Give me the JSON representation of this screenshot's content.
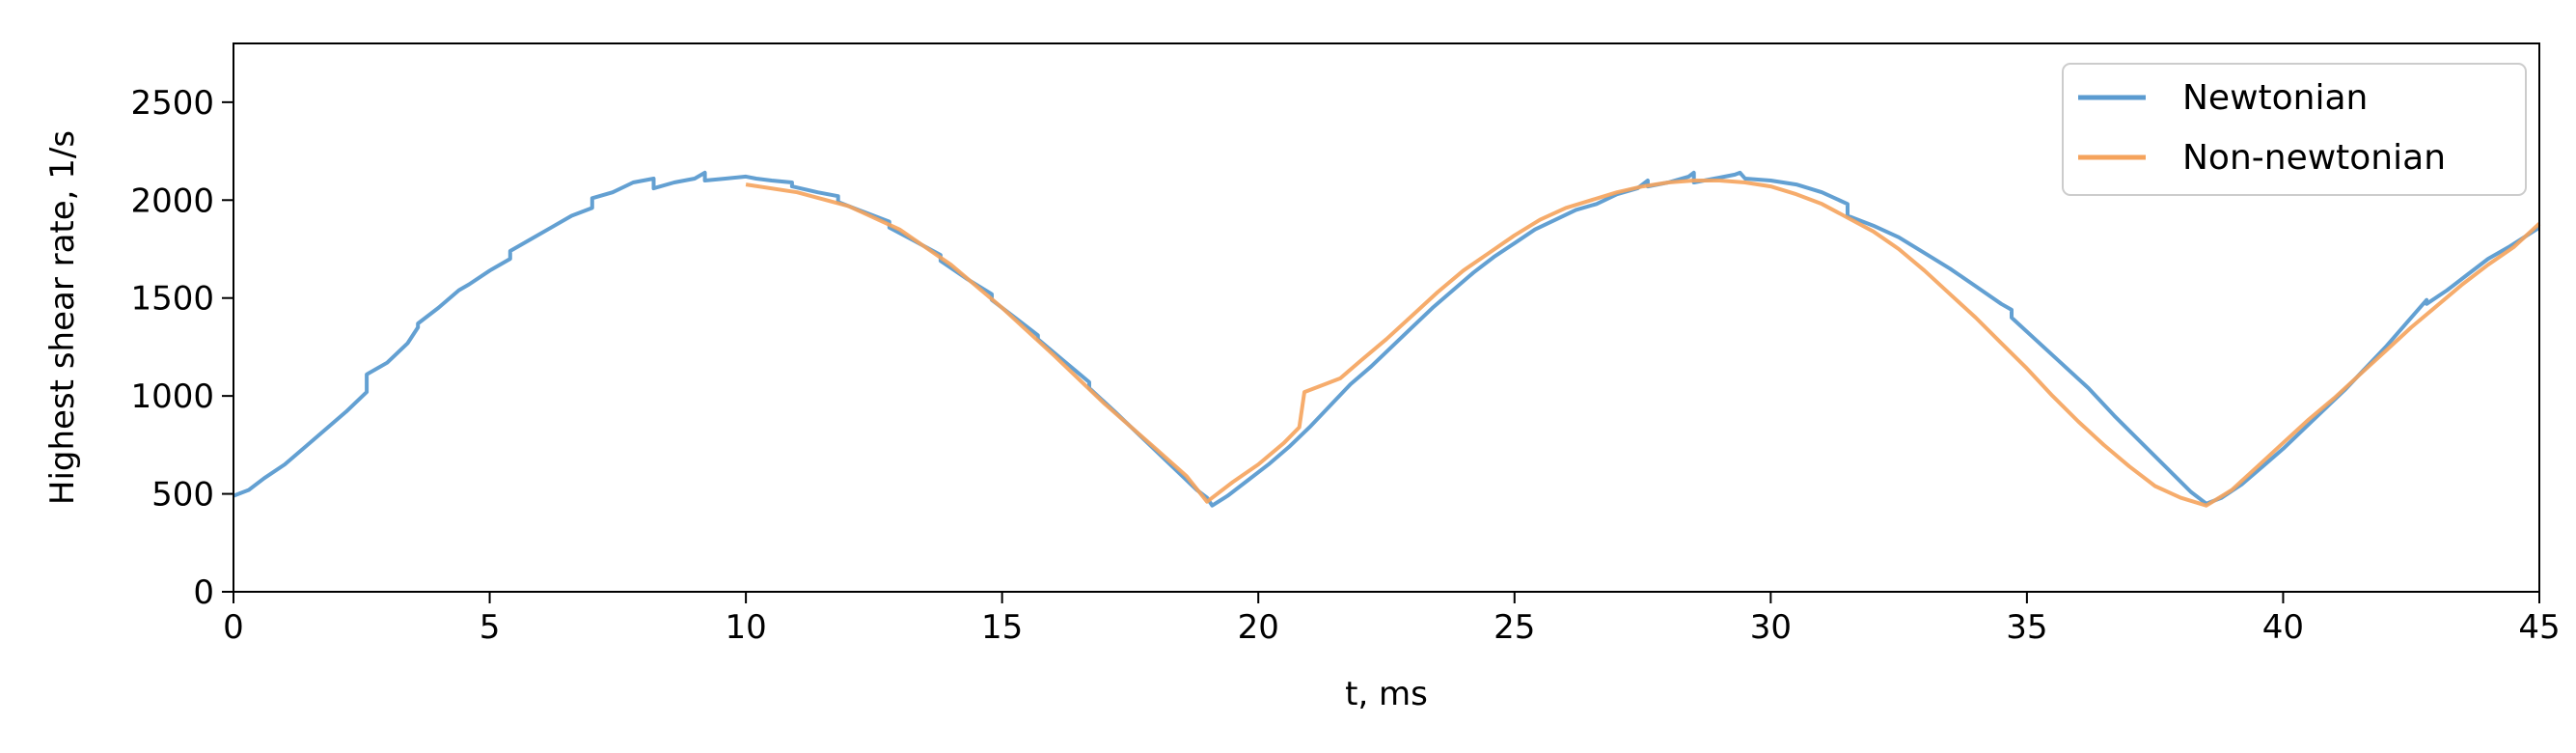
{
  "chart_data": {
    "type": "line",
    "title": "",
    "xlabel": "t, ms",
    "ylabel": "Highest shear rate, 1/s",
    "xlim": [
      0,
      45
    ],
    "ylim": [
      0,
      2800
    ],
    "xticks": [
      0,
      5,
      10,
      15,
      20,
      25,
      30,
      35,
      40,
      45
    ],
    "yticks": [
      0,
      500,
      1000,
      1500,
      2000,
      2500
    ],
    "grid": false,
    "legend_position": "top-right",
    "series": [
      {
        "name": "Newtonian",
        "color": "#5b9bd0",
        "points": [
          [
            0,
            490
          ],
          [
            0.3,
            520
          ],
          [
            0.6,
            580
          ],
          [
            1.0,
            650
          ],
          [
            1.4,
            740
          ],
          [
            1.8,
            830
          ],
          [
            2.2,
            920
          ],
          [
            2.6,
            1020
          ],
          [
            2.6,
            1110
          ],
          [
            3.0,
            1170
          ],
          [
            3.4,
            1270
          ],
          [
            3.6,
            1350
          ],
          [
            3.6,
            1370
          ],
          [
            4.0,
            1450
          ],
          [
            4.4,
            1540
          ],
          [
            4.6,
            1570
          ],
          [
            5.0,
            1640
          ],
          [
            5.4,
            1700
          ],
          [
            5.4,
            1740
          ],
          [
            5.8,
            1800
          ],
          [
            6.2,
            1860
          ],
          [
            6.6,
            1920
          ],
          [
            7.0,
            1960
          ],
          [
            7.0,
            2010
          ],
          [
            7.4,
            2040
          ],
          [
            7.8,
            2090
          ],
          [
            8.2,
            2110
          ],
          [
            8.2,
            2060
          ],
          [
            8.6,
            2090
          ],
          [
            9.0,
            2110
          ],
          [
            9.2,
            2140
          ],
          [
            9.2,
            2100
          ],
          [
            9.6,
            2110
          ],
          [
            10.0,
            2120
          ],
          [
            10.2,
            2110
          ],
          [
            10.5,
            2100
          ],
          [
            10.9,
            2090
          ],
          [
            10.9,
            2070
          ],
          [
            11.4,
            2040
          ],
          [
            11.8,
            2020
          ],
          [
            11.8,
            1990
          ],
          [
            12.3,
            1940
          ],
          [
            12.8,
            1890
          ],
          [
            12.8,
            1860
          ],
          [
            13.3,
            1790
          ],
          [
            13.8,
            1720
          ],
          [
            13.8,
            1690
          ],
          [
            14.3,
            1600
          ],
          [
            14.8,
            1520
          ],
          [
            14.8,
            1490
          ],
          [
            15.3,
            1390
          ],
          [
            15.7,
            1310
          ],
          [
            15.7,
            1290
          ],
          [
            16.2,
            1180
          ],
          [
            16.7,
            1070
          ],
          [
            16.7,
            1040
          ],
          [
            17.2,
            920
          ],
          [
            17.6,
            820
          ],
          [
            18.0,
            720
          ],
          [
            18.4,
            620
          ],
          [
            18.8,
            520
          ],
          [
            19.0,
            480
          ],
          [
            19.1,
            440
          ],
          [
            19.4,
            490
          ],
          [
            19.8,
            570
          ],
          [
            20.2,
            650
          ],
          [
            20.6,
            740
          ],
          [
            21.0,
            840
          ],
          [
            21.4,
            950
          ],
          [
            21.8,
            1060
          ],
          [
            22.2,
            1150
          ],
          [
            22.6,
            1250
          ],
          [
            23.0,
            1350
          ],
          [
            23.4,
            1450
          ],
          [
            23.8,
            1540
          ],
          [
            24.2,
            1630
          ],
          [
            24.6,
            1710
          ],
          [
            25.0,
            1780
          ],
          [
            25.4,
            1850
          ],
          [
            25.8,
            1900
          ],
          [
            26.2,
            1950
          ],
          [
            26.6,
            1980
          ],
          [
            27.0,
            2030
          ],
          [
            27.4,
            2060
          ],
          [
            27.6,
            2100
          ],
          [
            27.6,
            2070
          ],
          [
            28.0,
            2090
          ],
          [
            28.4,
            2120
          ],
          [
            28.5,
            2140
          ],
          [
            28.5,
            2090
          ],
          [
            28.9,
            2110
          ],
          [
            29.3,
            2130
          ],
          [
            29.4,
            2140
          ],
          [
            29.5,
            2110
          ],
          [
            30.0,
            2100
          ],
          [
            30.5,
            2080
          ],
          [
            31.0,
            2040
          ],
          [
            31.5,
            1980
          ],
          [
            31.5,
            1920
          ],
          [
            32.0,
            1870
          ],
          [
            32.5,
            1810
          ],
          [
            33.0,
            1730
          ],
          [
            33.5,
            1650
          ],
          [
            34.0,
            1560
          ],
          [
            34.5,
            1470
          ],
          [
            34.7,
            1440
          ],
          [
            34.7,
            1400
          ],
          [
            35.2,
            1280
          ],
          [
            35.7,
            1160
          ],
          [
            36.2,
            1040
          ],
          [
            36.7,
            900
          ],
          [
            37.2,
            770
          ],
          [
            37.7,
            640
          ],
          [
            38.2,
            510
          ],
          [
            38.5,
            450
          ],
          [
            38.8,
            480
          ],
          [
            39.2,
            550
          ],
          [
            39.6,
            640
          ],
          [
            40.0,
            730
          ],
          [
            40.4,
            830
          ],
          [
            40.8,
            930
          ],
          [
            41.2,
            1030
          ],
          [
            41.6,
            1140
          ],
          [
            42.0,
            1250
          ],
          [
            42.4,
            1370
          ],
          [
            42.8,
            1490
          ],
          [
            42.8,
            1470
          ],
          [
            43.2,
            1540
          ],
          [
            43.6,
            1620
          ],
          [
            44.0,
            1700
          ],
          [
            44.4,
            1760
          ],
          [
            45.0,
            1860
          ]
        ]
      },
      {
        "name": "Non-newtonian",
        "color": "#f5a35c",
        "points": [
          [
            10.0,
            2080
          ],
          [
            11.0,
            2040
          ],
          [
            12.0,
            1970
          ],
          [
            13.0,
            1850
          ],
          [
            14.0,
            1670
          ],
          [
            15.0,
            1450
          ],
          [
            16.0,
            1210
          ],
          [
            17.0,
            960
          ],
          [
            18.0,
            730
          ],
          [
            18.6,
            590
          ],
          [
            19.0,
            460
          ],
          [
            19.5,
            560
          ],
          [
            20.0,
            650
          ],
          [
            20.5,
            760
          ],
          [
            20.8,
            840
          ],
          [
            20.9,
            1020
          ],
          [
            21.3,
            1060
          ],
          [
            21.6,
            1090
          ],
          [
            22.0,
            1180
          ],
          [
            22.5,
            1290
          ],
          [
            23.0,
            1410
          ],
          [
            23.5,
            1530
          ],
          [
            24.0,
            1640
          ],
          [
            24.5,
            1730
          ],
          [
            25.0,
            1820
          ],
          [
            25.5,
            1900
          ],
          [
            26.0,
            1960
          ],
          [
            26.5,
            2000
          ],
          [
            27.0,
            2040
          ],
          [
            27.5,
            2070
          ],
          [
            28.0,
            2090
          ],
          [
            28.5,
            2100
          ],
          [
            29.0,
            2100
          ],
          [
            29.5,
            2090
          ],
          [
            30.0,
            2070
          ],
          [
            30.5,
            2030
          ],
          [
            31.0,
            1980
          ],
          [
            31.5,
            1910
          ],
          [
            32.0,
            1840
          ],
          [
            32.5,
            1750
          ],
          [
            33.0,
            1640
          ],
          [
            33.5,
            1520
          ],
          [
            34.0,
            1400
          ],
          [
            34.5,
            1270
          ],
          [
            35.0,
            1140
          ],
          [
            35.5,
            1000
          ],
          [
            36.0,
            870
          ],
          [
            36.5,
            750
          ],
          [
            37.0,
            640
          ],
          [
            37.5,
            540
          ],
          [
            38.0,
            480
          ],
          [
            38.5,
            440
          ],
          [
            39.0,
            520
          ],
          [
            39.5,
            640
          ],
          [
            40.0,
            760
          ],
          [
            40.5,
            880
          ],
          [
            41.0,
            990
          ],
          [
            41.5,
            1110
          ],
          [
            42.0,
            1230
          ],
          [
            42.5,
            1350
          ],
          [
            43.0,
            1460
          ],
          [
            43.5,
            1570
          ],
          [
            44.0,
            1670
          ],
          [
            44.5,
            1760
          ],
          [
            45.0,
            1880
          ]
        ]
      }
    ]
  }
}
